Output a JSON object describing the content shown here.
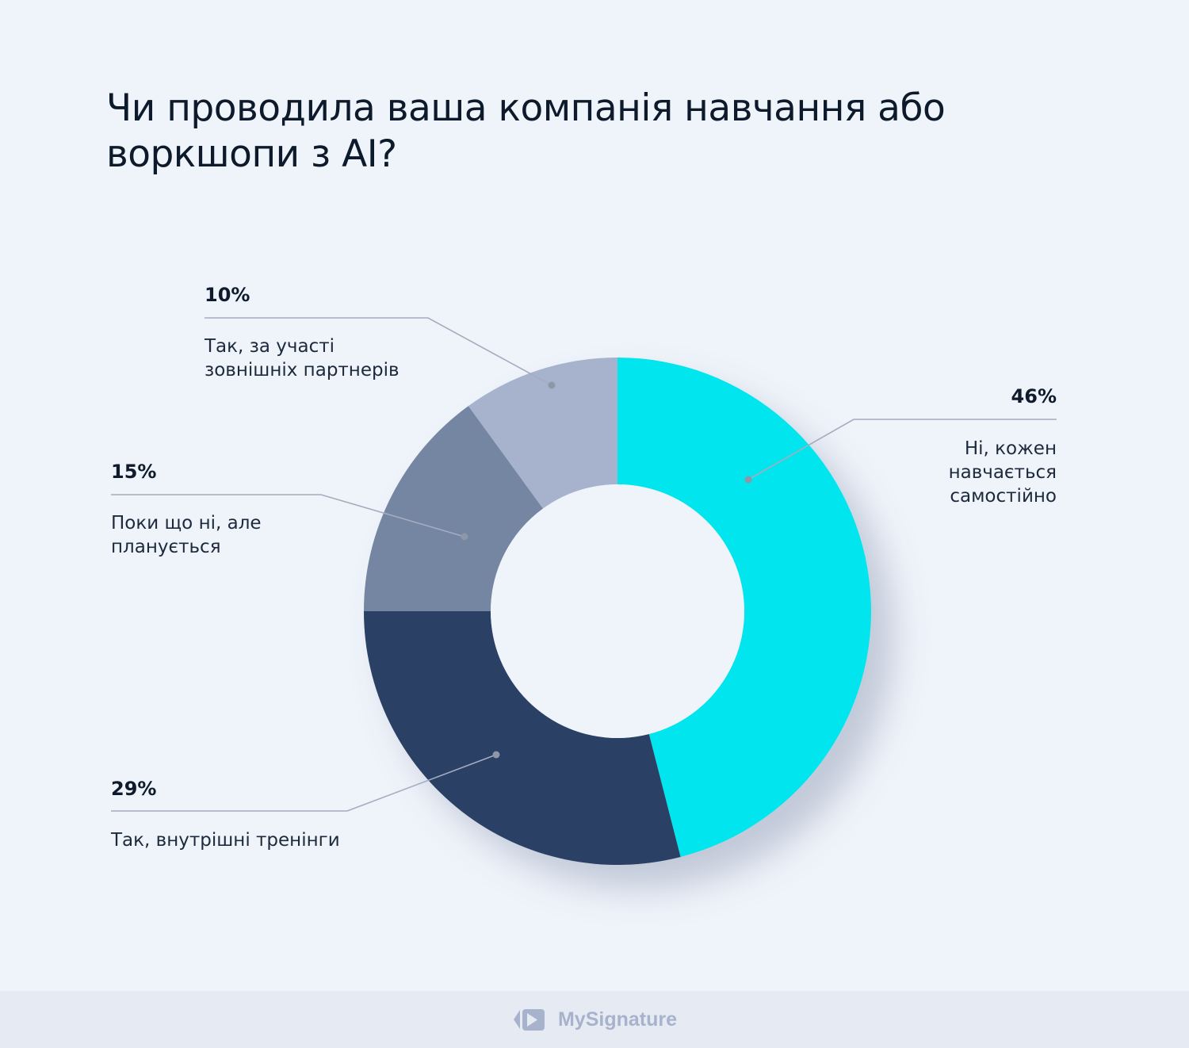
{
  "chart_data": {
    "type": "pie",
    "variant": "donut",
    "title": "Чи проводила ваша компанія навчання або воркшопи з AI?",
    "categories": [
      "Ні, кожен навчається самостійно",
      "Так, внутрішні тренінги",
      "Поки що ні, але планується",
      "Так, за участі зовнішніх партнерів"
    ],
    "values": [
      46,
      29,
      15,
      10
    ],
    "data_labels": [
      "46%",
      "29%",
      "15%",
      "10%"
    ],
    "colors": [
      "#00e5ee",
      "#2c4065",
      "#7586a2",
      "#a7b3cc"
    ],
    "start": "top",
    "direction": "clockwise"
  },
  "labels": {
    "s0": {
      "pct": "46%",
      "lines": [
        "Ні, кожен",
        "навчається",
        "самостійно"
      ]
    },
    "s1": {
      "pct": "29%",
      "lines": [
        "Так, внутрішні тренінги"
      ]
    },
    "s2": {
      "pct": "15%",
      "lines": [
        "Поки що ні, але",
        "планується"
      ]
    },
    "s3": {
      "pct": "10%",
      "lines": [
        "Так, за участі",
        "зовнішніх партнерів"
      ]
    }
  },
  "footer": {
    "brand": "MySignature"
  }
}
